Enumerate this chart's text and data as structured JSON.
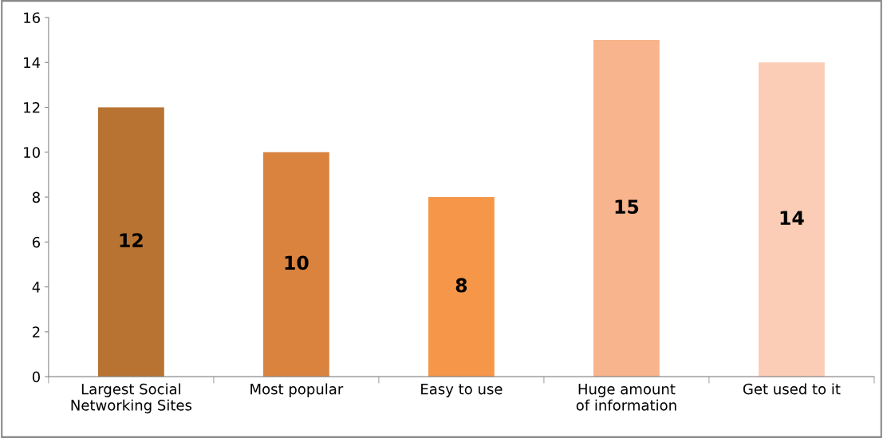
{
  "chart_data": {
    "type": "bar",
    "categories": [
      "Largest Social Networking Sites",
      "Most popular",
      "Easy to use",
      "Huge amount of information",
      "Get used to it"
    ],
    "values": [
      12,
      10,
      8,
      15,
      14
    ],
    "colors": [
      "#b87333",
      "#da833f",
      "#f59648",
      "#f8b48c",
      "#fbcdb6"
    ],
    "ylim": [
      0,
      16
    ],
    "yticks": [
      0,
      2,
      4,
      6,
      8,
      10,
      12,
      14,
      16
    ],
    "data_labels": true,
    "grid": false,
    "legend": false
  }
}
